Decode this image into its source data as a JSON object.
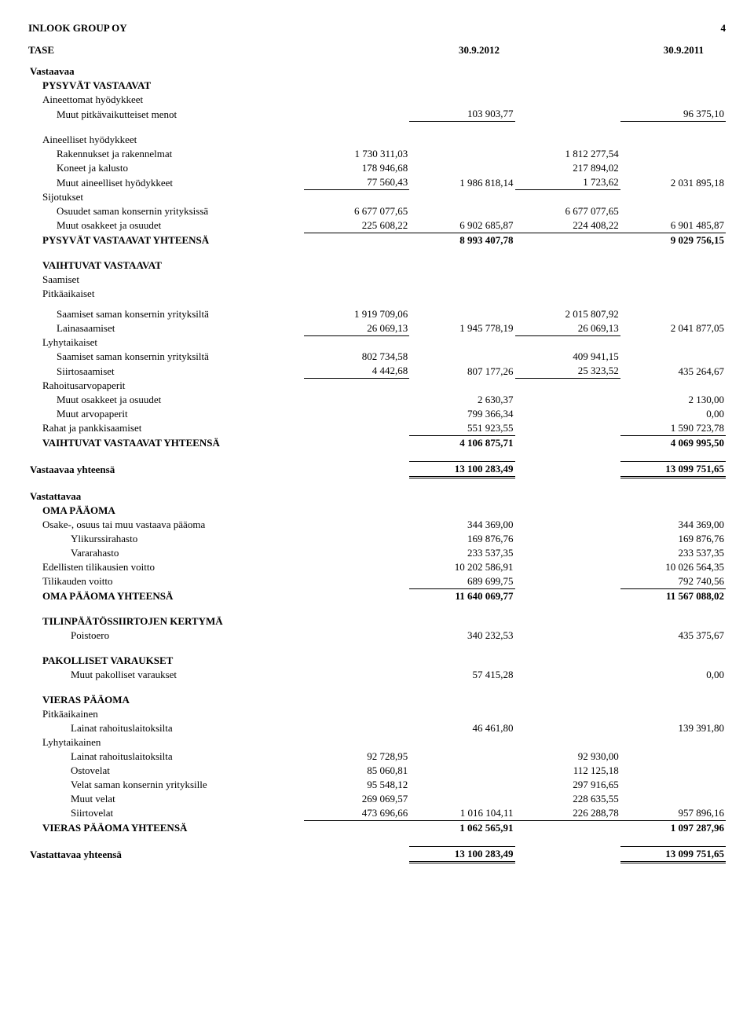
{
  "header": {
    "company": "INLOOK GROUP OY",
    "page": "4"
  },
  "tase": {
    "label": "TASE",
    "date1": "30.9.2012",
    "date2": "30.9.2011"
  },
  "rows": [
    {
      "type": "bold",
      "label": "Vastaavaa"
    },
    {
      "type": "bold",
      "indent": 1,
      "label": "PYSYVÄT VASTAAVAT"
    },
    {
      "indent": 1,
      "label": "Aineettomat hyödykkeet"
    },
    {
      "indent": 2,
      "label": "Muut pitkävaikutteiset menot",
      "c2": "103 903,77",
      "c4": "96 375,10",
      "u": [
        2,
        4
      ]
    },
    {
      "type": "gap"
    },
    {
      "indent": 1,
      "label": "Aineelliset hyödykkeet"
    },
    {
      "indent": 2,
      "label": "Rakennukset ja rakennelmat",
      "c1": "1 730 311,03",
      "c3": "1 812 277,54"
    },
    {
      "indent": 2,
      "label": "Koneet ja kalusto",
      "c1": "178 946,68",
      "c3": "217 894,02"
    },
    {
      "indent": 2,
      "label": "Muut aineelliset hyödykkeet",
      "c1": "77 560,43",
      "c2": "1 986 818,14",
      "c3": "1 723,62",
      "c4": "2 031 895,18",
      "u": [
        1,
        3
      ]
    },
    {
      "indent": 1,
      "label": "Sijotukset"
    },
    {
      "indent": 2,
      "label": "Osuudet saman konsernin yrityksissä",
      "c1": "6 677 077,65",
      "c3": "6 677 077,65"
    },
    {
      "indent": 2,
      "label": "Muut osakkeet ja osuudet",
      "c1": "225 608,22",
      "c2": "6 902 685,87",
      "c3": "224 408,22",
      "c4": "6 901 485,87",
      "u": [
        1,
        2,
        3,
        4
      ]
    },
    {
      "type": "bold",
      "indent": 1,
      "label": "PYSYVÄT VASTAAVAT YHTEENSÄ",
      "c2": "8 993 407,78",
      "c4": "9 029 756,15"
    },
    {
      "type": "gap"
    },
    {
      "type": "bold",
      "indent": 1,
      "label": "VAIHTUVAT VASTAAVAT"
    },
    {
      "indent": 1,
      "label": "Saamiset"
    },
    {
      "indent": 1,
      "label": "Pitkäaikaiset"
    },
    {
      "type": "small-gap"
    },
    {
      "indent": 2,
      "label": "Saamiset saman konsernin yrityksiltä",
      "c1": "1 919 709,06",
      "c3": "2 015 807,92"
    },
    {
      "indent": 2,
      "label": "Lainasaamiset",
      "c1": "26 069,13",
      "c2": "1 945 778,19",
      "c3": "26 069,13",
      "c4": "2 041 877,05",
      "u": [
        1,
        3
      ]
    },
    {
      "indent": 1,
      "label": "Lyhytaikaiset"
    },
    {
      "indent": 2,
      "label": "Saamiset saman konsernin yrityksiltä",
      "c1": "802 734,58",
      "c3": "409 941,15"
    },
    {
      "indent": 2,
      "label": "Siirtosaamiset",
      "c1": "4 442,68",
      "c2": "807 177,26",
      "c3": "25 323,52",
      "c4": "435 264,67",
      "u": [
        1,
        3
      ]
    },
    {
      "indent": 1,
      "label": "Rahoitusarvopaperit"
    },
    {
      "indent": 2,
      "label": "Muut osakkeet ja osuudet",
      "c2": "2 630,37",
      "c4": "2 130,00"
    },
    {
      "indent": 2,
      "label": "Muut arvopaperit",
      "c2": "799 366,34",
      "c4": "0,00"
    },
    {
      "indent": 1,
      "label": "Rahat ja pankkisaamiset",
      "c2": "551 923,55",
      "c4": "1 590 723,78",
      "u": [
        2,
        4
      ]
    },
    {
      "type": "bold",
      "indent": 1,
      "label": "VAIHTUVAT VASTAAVAT YHTEENSÄ",
      "c2": "4 106 875,71",
      "c4": "4 069 995,50"
    },
    {
      "type": "gap"
    },
    {
      "type": "bold",
      "label": "Vastaavaa yhteensä",
      "c2": "13 100 283,49",
      "c4": "13 099 751,65",
      "dbl": true
    },
    {
      "type": "gap"
    },
    {
      "type": "bold",
      "label": "Vastattavaa"
    },
    {
      "type": "bold",
      "indent": 1,
      "label": "OMA PÄÄOMA"
    },
    {
      "indent": 1,
      "label": "Osake-, osuus tai muu vastaava pääoma",
      "c2": "344 369,00",
      "c4": "344 369,00"
    },
    {
      "indent": 3,
      "label": "Ylikurssirahasto",
      "c2": "169 876,76",
      "c4": "169 876,76"
    },
    {
      "indent": 3,
      "label": "Vararahasto",
      "c2": "233 537,35",
      "c4": "233 537,35"
    },
    {
      "indent": 1,
      "label": "Edellisten tilikausien voitto",
      "c2": "10 202 586,91",
      "c4": "10 026 564,35"
    },
    {
      "indent": 1,
      "label": "Tilikauden voitto",
      "c2": "689 699,75",
      "c4": "792 740,56",
      "u": [
        2,
        4
      ]
    },
    {
      "type": "bold",
      "indent": 1,
      "label": "OMA PÄÄOMA YHTEENSÄ",
      "c2": "11 640 069,77",
      "c4": "11 567 088,02"
    },
    {
      "type": "gap"
    },
    {
      "type": "bold",
      "indent": 1,
      "label": "TILINPÄÄTÖSSIIRTOJEN KERTYMÄ"
    },
    {
      "indent": 3,
      "label": "Poistoero",
      "c2": "340 232,53",
      "c4": "435 375,67"
    },
    {
      "type": "gap"
    },
    {
      "type": "bold",
      "indent": 1,
      "label": "PAKOLLISET VARAUKSET"
    },
    {
      "indent": 3,
      "label": "Muut pakolliset varaukset",
      "c2": "57 415,28",
      "c4": "0,00"
    },
    {
      "type": "gap"
    },
    {
      "type": "bold",
      "indent": 1,
      "label": "VIERAS PÄÄOMA"
    },
    {
      "indent": 1,
      "label": "Pitkäaikainen"
    },
    {
      "indent": 3,
      "label": "Lainat rahoituslaitoksilta",
      "c2": "46 461,80",
      "c4": "139 391,80"
    },
    {
      "indent": 1,
      "label": "Lyhytaikainen"
    },
    {
      "indent": 3,
      "label": "Lainat rahoituslaitoksilta",
      "c1": "92 728,95",
      "c3": "92 930,00"
    },
    {
      "indent": 3,
      "label": "Ostovelat",
      "c1": "85 060,81",
      "c3": "112 125,18"
    },
    {
      "indent": 3,
      "label": "Velat saman konsernin yrityksille",
      "c1": "95 548,12",
      "c3": "297 916,65"
    },
    {
      "indent": 3,
      "label": "Muut velat",
      "c1": "269 069,57",
      "c3": "228 635,55"
    },
    {
      "indent": 3,
      "label": "Siirtovelat",
      "c1": "473 696,66",
      "c2": "1 016 104,11",
      "c3": "226 288,78",
      "c4": "957 896,16",
      "u": [
        1,
        2,
        3,
        4
      ]
    },
    {
      "type": "bold",
      "indent": 1,
      "label": "VIERAS PÄÄOMA YHTEENSÄ",
      "c2": "1 062 565,91",
      "c4": "1 097 287,96"
    },
    {
      "type": "gap"
    },
    {
      "type": "bold",
      "label": "Vastattavaa yhteensä",
      "c2": "13 100 283,49",
      "c4": "13 099 751,65",
      "dbl": true
    }
  ]
}
